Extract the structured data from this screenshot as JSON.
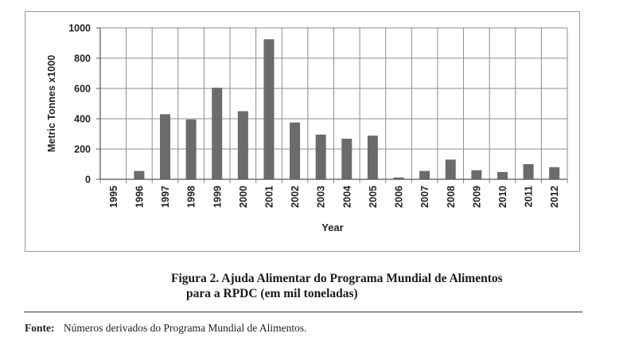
{
  "chart_data": {
    "type": "bar",
    "categories": [
      "1995",
      "1996",
      "1997",
      "1998",
      "1999",
      "2000",
      "2001",
      "2002",
      "2003",
      "2004",
      "2005",
      "2006",
      "2007",
      "2008",
      "2009",
      "2010",
      "2011",
      "2012"
    ],
    "values": [
      0,
      55,
      430,
      395,
      605,
      450,
      925,
      375,
      295,
      268,
      288,
      12,
      55,
      130,
      60,
      48,
      100,
      80
    ],
    "xlabel": "Year",
    "ylabel": "Metric Tonnes x1000",
    "ylim": [
      0,
      1000
    ],
    "yticks": [
      0,
      200,
      400,
      600,
      800,
      1000
    ],
    "grid": true,
    "bar_color": "#6b6b6b"
  },
  "caption": {
    "line1": "Figura 2. Ajuda Alimentar do Programa Mundial de Alimentos",
    "line2": "para a RPDC (em mil toneladas)"
  },
  "source": {
    "label": "Fonte:",
    "text": "Números derivados do Programa Mundial de Alimentos."
  }
}
